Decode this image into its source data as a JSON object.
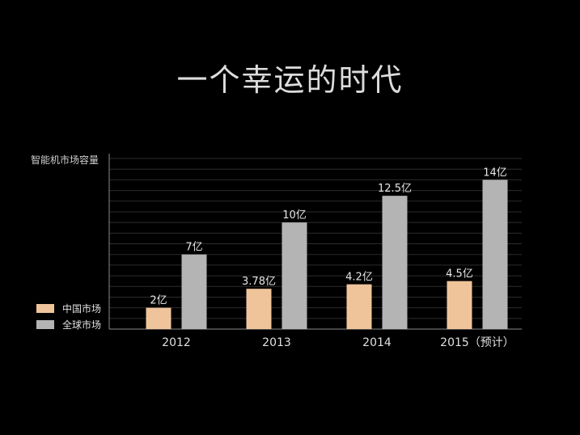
{
  "slide": {
    "title": "一个幸运的时代"
  },
  "colors": {
    "background": "#000000",
    "china": "#f0c49b",
    "global": "#b4b4b4",
    "grid": "#2c2c2c",
    "axis": "#8a8a8a"
  },
  "chart_data": {
    "type": "bar",
    "title": "",
    "xlabel": "",
    "ylabel": "智能机市场容量",
    "categories": [
      "2012",
      "2013",
      "2014",
      "2015（预计）"
    ],
    "series": [
      {
        "name": "中国市场",
        "color": "#f0c49b",
        "values": [
          2,
          3.78,
          4.2,
          4.5
        ],
        "labels": [
          "2亿",
          "3.78亿",
          "4.2亿",
          "4.5亿"
        ]
      },
      {
        "name": "全球市场",
        "color": "#b4b4b4",
        "values": [
          7,
          10,
          12.5,
          14
        ],
        "labels": [
          "7亿",
          "10亿",
          "12.5亿",
          "14亿"
        ]
      }
    ],
    "ylim": [
      0,
      16
    ],
    "grid": true,
    "legend_position": "bottom-left"
  }
}
